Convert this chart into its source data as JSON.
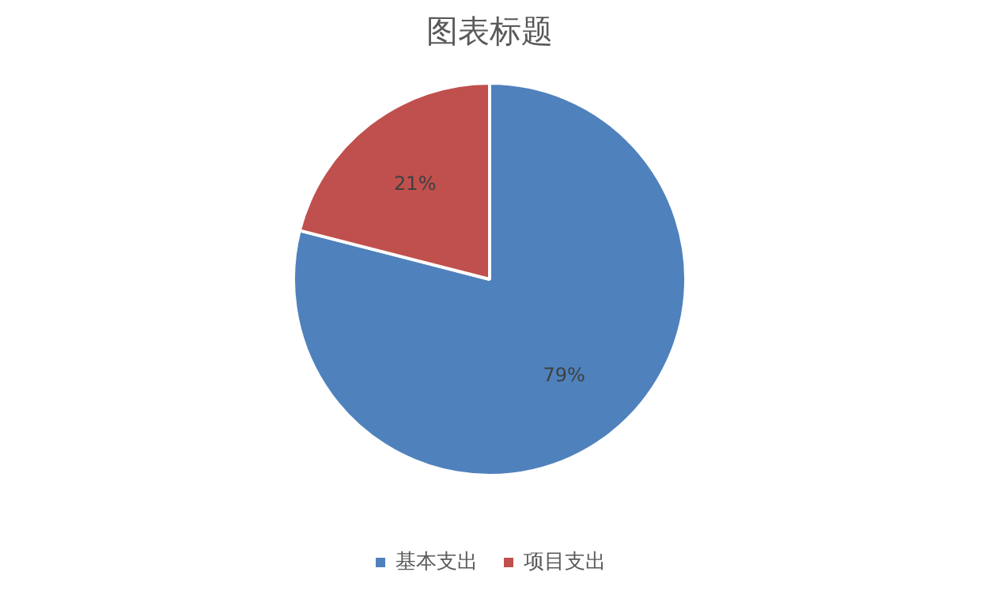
{
  "chart_data": {
    "type": "pie",
    "title": "图表标题",
    "categories": [
      "基本支出",
      "项目支出"
    ],
    "values": [
      79,
      21
    ],
    "value_labels": [
      "79%",
      "21%"
    ],
    "colors": [
      "#4f81bd",
      "#c0504d"
    ],
    "legend": "bottom"
  }
}
